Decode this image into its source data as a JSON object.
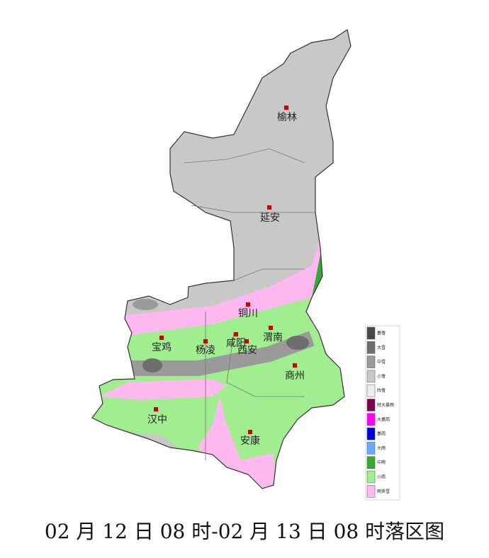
{
  "map": {
    "cities": [
      "榆林",
      "延安",
      "铜川",
      "宝鸡",
      "杨凌",
      "咸阳",
      "西安",
      "渭南",
      "商州",
      "汉中",
      "安康"
    ],
    "legend": [
      {
        "label": "暴雪",
        "color": "#4a4a4a"
      },
      {
        "label": "大雪",
        "color": "#6e6e6e"
      },
      {
        "label": "中雪",
        "color": "#9a9a9a"
      },
      {
        "label": "小雪",
        "color": "#c8c8c8"
      },
      {
        "label": "阵雪",
        "color": "#eeeeee"
      },
      {
        "label": "特大暴雨",
        "color": "#800050"
      },
      {
        "label": "大暴雨",
        "color": "#ff00ff"
      },
      {
        "label": "暴雨",
        "color": "#0000e0"
      },
      {
        "label": "大雨",
        "color": "#66aaff"
      },
      {
        "label": "中雨",
        "color": "#33a833"
      },
      {
        "label": "小雨",
        "color": "#a0ee90"
      },
      {
        "label": "雨夹雪",
        "color": "#ffb8f0"
      }
    ],
    "caption": "02 月 12 日 08 时-02 月 13 日 08 时落区图"
  }
}
